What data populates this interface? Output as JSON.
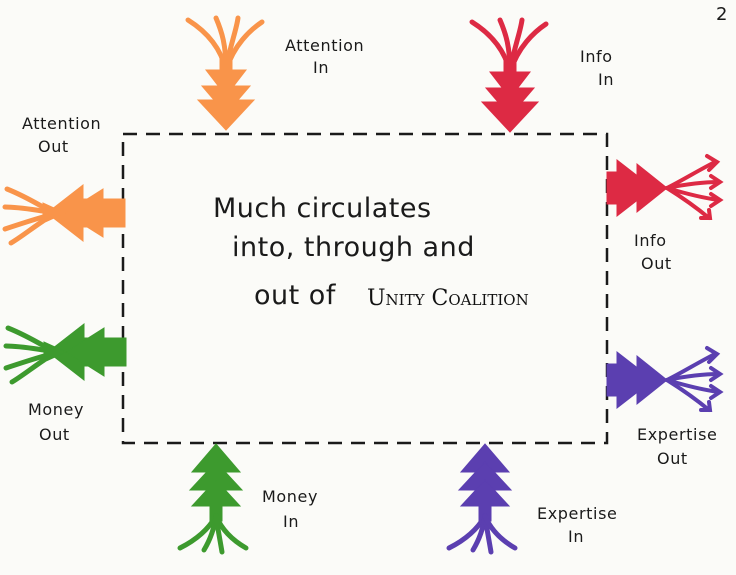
{
  "page_number": "2",
  "center_text": {
    "line1": "Much circulates",
    "line2": "into, through and",
    "line3_prefix": "out of",
    "org_name": "Unity Coalition"
  },
  "flows": {
    "attention_in": {
      "line1": "Attention",
      "line2": "In",
      "color": "#f9944a"
    },
    "info_in": {
      "line1": "Info",
      "line2": "In",
      "color": "#dd2a44"
    },
    "attention_out": {
      "line1": "Attention",
      "line2": "Out",
      "color": "#f9944a"
    },
    "info_out": {
      "line1": "Info",
      "line2": "Out",
      "color": "#dd2a44"
    },
    "money_out": {
      "line1": "Money",
      "line2": "Out",
      "color": "#3d9a2e"
    },
    "expertise_out": {
      "line1": "Expertise",
      "line2": "Out",
      "color": "#5b3fb0"
    },
    "money_in": {
      "line1": "Money",
      "line2": "In",
      "color": "#3d9a2e"
    },
    "expertise_in": {
      "line1": "Expertise",
      "line2": "In",
      "color": "#5b3fb0"
    }
  }
}
